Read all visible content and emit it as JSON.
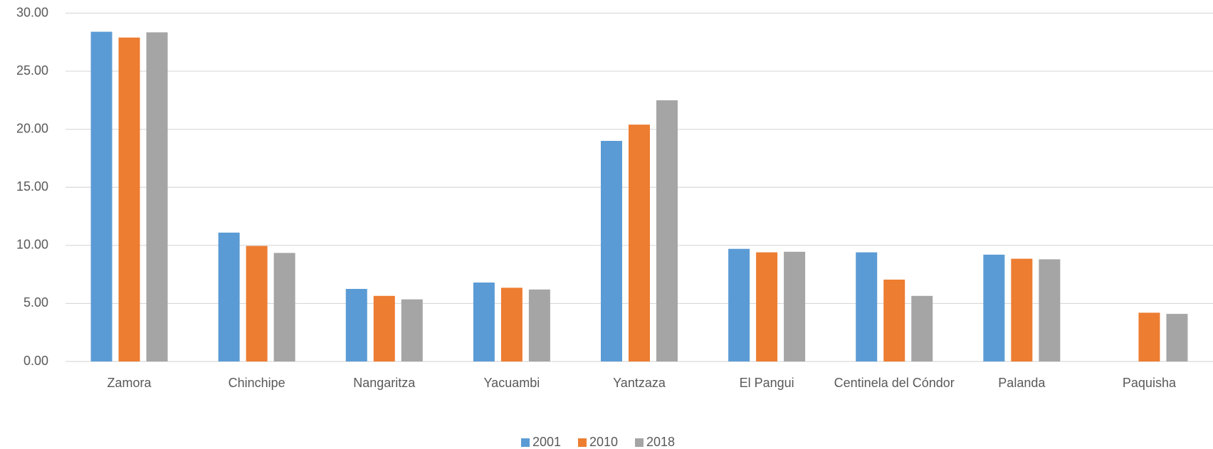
{
  "chart_data": {
    "type": "bar",
    "categories": [
      "Zamora",
      "Chinchipe",
      "Nangaritza",
      "Yacuambi",
      "Yantzaza",
      "El Pangui",
      "Centinela del Cóndor",
      "Palanda",
      "Paquisha"
    ],
    "series": [
      {
        "name": "2001",
        "color": "#5b9bd5",
        "values": [
          28.4,
          11.1,
          6.25,
          6.8,
          19.0,
          9.7,
          9.4,
          9.2,
          null
        ]
      },
      {
        "name": "2010",
        "color": "#ed7d31",
        "values": [
          27.9,
          9.95,
          5.65,
          6.35,
          20.4,
          9.4,
          7.05,
          8.85,
          4.2
        ]
      },
      {
        "name": "2018",
        "color": "#a5a5a5",
        "values": [
          28.35,
          9.35,
          5.35,
          6.2,
          22.5,
          9.45,
          5.65,
          8.8,
          4.1
        ]
      }
    ],
    "ylim": [
      0,
      30
    ],
    "yticks": [
      {
        "value": 0,
        "label": "0.00"
      },
      {
        "value": 5,
        "label": "5.00"
      },
      {
        "value": 10,
        "label": "10.00"
      },
      {
        "value": 15,
        "label": "15.00"
      },
      {
        "value": 20,
        "label": "20.00"
      },
      {
        "value": 25,
        "label": "25.00"
      },
      {
        "value": 30,
        "label": "30.00"
      }
    ],
    "grid": true,
    "legend": "bottom"
  }
}
